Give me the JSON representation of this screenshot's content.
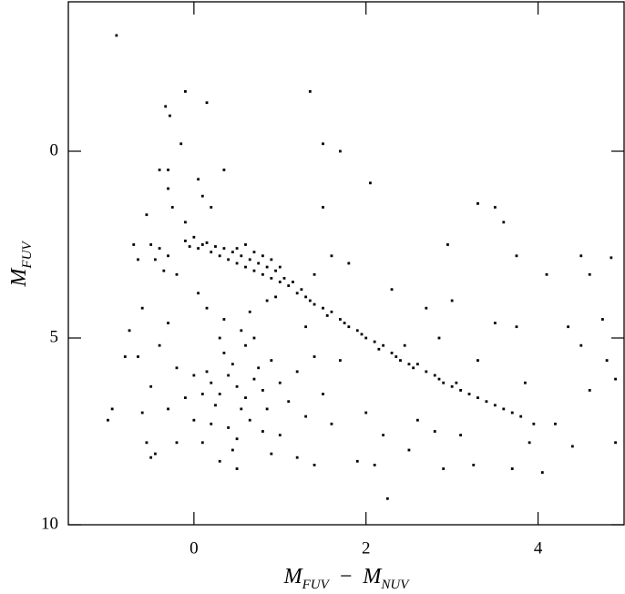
{
  "chart_data": {
    "type": "scatter",
    "color": "#000000",
    "xlabel": [
      "M",
      "FUV",
      "−",
      "M",
      "NUV"
    ],
    "ylabel": [
      "M",
      "FUV"
    ],
    "xlim": [
      -1.46,
      5.0
    ],
    "ylim": [
      10,
      -4
    ],
    "xticks": [
      0,
      2,
      4
    ],
    "yticks": [
      0,
      5,
      10
    ],
    "x": [
      -0.9,
      -0.1,
      0.15,
      1.35,
      -0.33,
      -0.28,
      1.5,
      1.7,
      -0.15,
      2.05,
      -0.4,
      -0.3,
      0.05,
      0.35,
      -0.3,
      -0.55,
      -0.25,
      0.1,
      0.2,
      -0.1,
      1.5,
      3.5,
      3.6,
      2.95,
      3.3,
      4.5,
      4.85,
      3.75,
      4.1,
      4.6,
      -0.7,
      -0.65,
      -0.5,
      -0.45,
      -0.4,
      -0.35,
      -0.3,
      -0.2,
      -0.6,
      -0.8,
      -0.1,
      -0.05,
      0,
      0.05,
      0.1,
      0.15,
      0.2,
      0.25,
      0.3,
      0.35,
      0.4,
      0.45,
      0.5,
      0.5,
      0.55,
      0.6,
      0.6,
      0.65,
      0.7,
      0.7,
      0.75,
      0.8,
      0.8,
      0.85,
      0.9,
      0.9,
      0.95,
      1.0,
      1.0,
      1.05,
      1.1,
      1.15,
      1.2,
      1.25,
      1.3,
      1.35,
      1.4,
      1.5,
      1.55,
      1.6,
      1.7,
      1.75,
      1.8,
      1.9,
      1.95,
      2.0,
      2.1,
      2.15,
      2.2,
      2.3,
      2.35,
      2.4,
      2.5,
      2.55,
      2.6,
      2.7,
      2.8,
      2.85,
      2.9,
      3.0,
      3.05,
      3.1,
      3.2,
      3.3,
      3.4,
      3.5,
      3.6,
      3.7,
      3.8,
      3.95,
      0.5,
      0.4,
      0.6,
      0.3,
      0.7,
      0.45,
      0.55,
      0.35,
      0.65,
      0.2,
      0.8,
      0.25,
      0.75,
      0.15,
      0.85,
      0.1,
      0.9,
      0.4,
      0.6,
      0.5,
      0.0,
      1.0,
      0.3,
      0.7,
      0.2,
      0.8,
      -0.1,
      1.1,
      0.45,
      0.55,
      -0.2,
      1.2,
      0.1,
      0.9,
      -0.3,
      1.3,
      0.35,
      0.65,
      0.0,
      1.0,
      -0.4,
      1.4,
      -0.2,
      1.2,
      0.15,
      0.85,
      -0.5,
      1.5,
      0.5,
      0.3,
      -0.6,
      1.6,
      -0.3,
      1.3,
      -0.45,
      1.4,
      0.05,
      0.95,
      -0.65,
      1.7,
      2.0,
      2.2,
      1.9,
      2.1,
      2.25,
      2.5,
      2.6,
      2.8,
      2.9,
      3.1,
      3.25,
      3.7,
      4.05,
      3.9,
      4.2,
      4.4,
      4.5,
      4.6,
      4.8,
      4.9,
      4.9,
      4.75,
      3.5,
      3.75,
      3.3,
      2.3,
      1.8,
      2.7,
      -1.0,
      -0.95,
      -0.75,
      -0.55,
      -0.5,
      2.45,
      3.85,
      4.35,
      1.6,
      1.4,
      2.85,
      3.0
    ],
    "values": [
      -3.1,
      -1.6,
      -1.3,
      -1.6,
      -1.2,
      -0.95,
      -0.2,
      0,
      -0.2,
      0.85,
      0.5,
      0.5,
      0.75,
      0.5,
      1.0,
      1.7,
      1.5,
      1.2,
      1.5,
      1.9,
      1.5,
      1.5,
      1.9,
      2.5,
      1.4,
      2.8,
      2.85,
      2.8,
      3.3,
      3.3,
      2.5,
      2.9,
      2.5,
      2.9,
      2.6,
      3.2,
      2.8,
      3.3,
      4.2,
      5.5,
      2.4,
      2.55,
      2.3,
      2.6,
      2.5,
      2.45,
      2.7,
      2.55,
      2.8,
      2.6,
      2.9,
      2.7,
      3.0,
      2.6,
      2.8,
      3.1,
      2.5,
      2.9,
      3.2,
      2.7,
      3.0,
      3.3,
      2.8,
      3.1,
      3.4,
      2.9,
      3.2,
      3.5,
      3.1,
      3.4,
      3.6,
      3.5,
      3.8,
      3.7,
      3.9,
      4.0,
      4.1,
      4.2,
      4.4,
      4.3,
      4.5,
      4.6,
      4.7,
      4.8,
      4.9,
      5.0,
      5.1,
      5.3,
      5.2,
      5.4,
      5.5,
      5.6,
      5.7,
      5.8,
      5.7,
      5.9,
      6.0,
      6.1,
      6.2,
      6.3,
      6.2,
      6.4,
      6.5,
      6.6,
      6.7,
      6.8,
      6.9,
      7.0,
      7.1,
      7.3,
      6.3,
      6.0,
      6.6,
      6.5,
      6.1,
      5.7,
      6.9,
      5.4,
      7.2,
      6.2,
      6.4,
      6.8,
      5.8,
      5.9,
      6.9,
      6.5,
      5.6,
      7.4,
      5.2,
      7.7,
      6.0,
      6.2,
      5.0,
      5.0,
      7.3,
      7.5,
      6.6,
      6.7,
      8.0,
      4.8,
      5.8,
      5.9,
      7.8,
      8.1,
      6.9,
      7.1,
      4.5,
      4.3,
      7.2,
      7.6,
      5.2,
      5.5,
      7.8,
      8.2,
      4.2,
      4.0,
      6.3,
      6.5,
      8.5,
      8.3,
      7.0,
      7.3,
      4.6,
      4.7,
      8.1,
      8.4,
      3.8,
      3.9,
      5.5,
      5.6,
      7.0,
      7.6,
      8.3,
      8.4,
      9.3,
      8.0,
      7.2,
      7.5,
      8.5,
      7.6,
      8.4,
      8.5,
      8.6,
      7.8,
      7.3,
      7.9,
      5.2,
      6.4,
      5.6,
      6.1,
      7.8,
      4.5,
      4.6,
      4.7,
      5.6,
      3.7,
      3.0,
      4.2,
      7.2,
      6.9,
      4.8,
      7.8,
      8.2,
      5.2,
      6.2,
      4.7,
      2.8,
      3.3,
      5.0,
      4.0
    ]
  }
}
